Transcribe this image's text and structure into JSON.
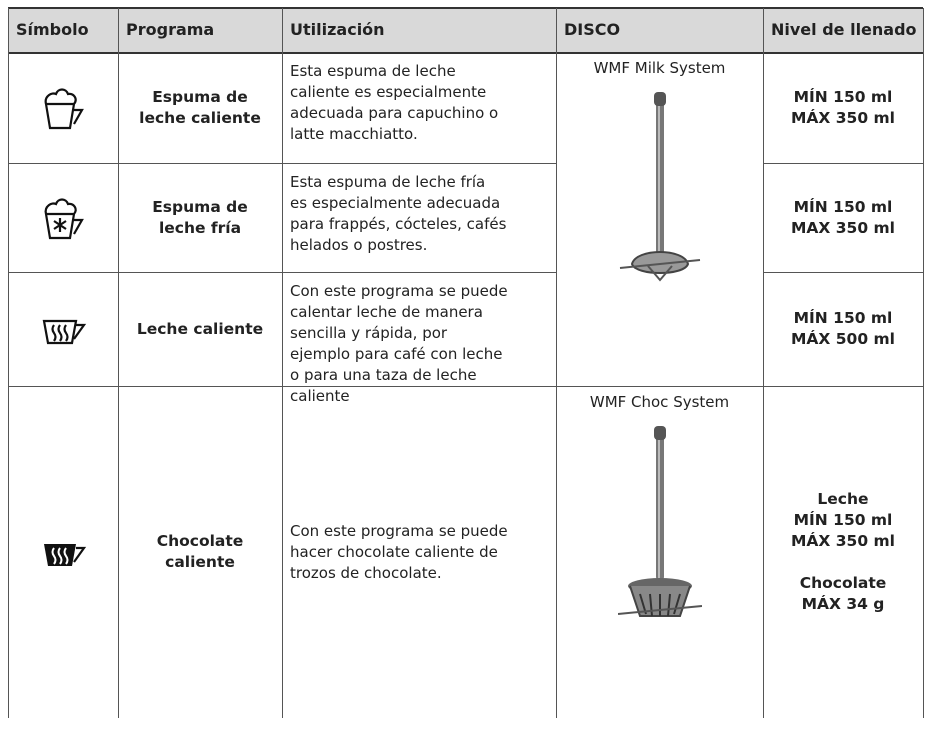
{
  "table": {
    "headers": [
      "Símbolo",
      "Programa",
      "Utilización",
      "DISCO",
      "Nivel de llenado"
    ],
    "rows": [
      {
        "program": [
          "Espuma de",
          "leche caliente"
        ],
        "usage": [
          "Esta espuma de leche",
          "caliente es especialmente",
          "adecuada para capuchino o",
          "latte macchiatto."
        ],
        "disco": "WMF Milk System",
        "fill": [
          [
            "MÍN 150 ml",
            "MÁX 350 ml"
          ]
        ]
      },
      {
        "program": [
          "Espuma de",
          "leche fría"
        ],
        "usage": [
          "Esta espuma de leche fría",
          "es especialmente adecuada",
          "para frappés, cócteles, cafés",
          "helados o postres."
        ],
        "fill": [
          [
            "MÍN 150 ml",
            "MAX 350 ml"
          ]
        ]
      },
      {
        "program": [
          "Leche caliente"
        ],
        "usage": [
          "Con este programa se puede",
          "calentar leche de manera",
          "sencilla y rápida, por",
          "ejemplo para café con leche",
          "o para una taza de leche",
          "caliente"
        ],
        "fill": [
          [
            "MÍN 150 ml",
            "MÁX 500 ml"
          ]
        ]
      },
      {
        "program": [
          "Chocolate",
          "caliente"
        ],
        "usage": [
          "Con este programa se puede",
          "hacer chocolate caliente de",
          "trozos de chocolate."
        ],
        "disco": "WMF Choc System",
        "fill": [
          [
            "Leche",
            "MÍN 150 ml",
            "MÁX 350 ml"
          ],
          [
            "Chocolate",
            "MÁX 34 g"
          ]
        ]
      }
    ]
  }
}
